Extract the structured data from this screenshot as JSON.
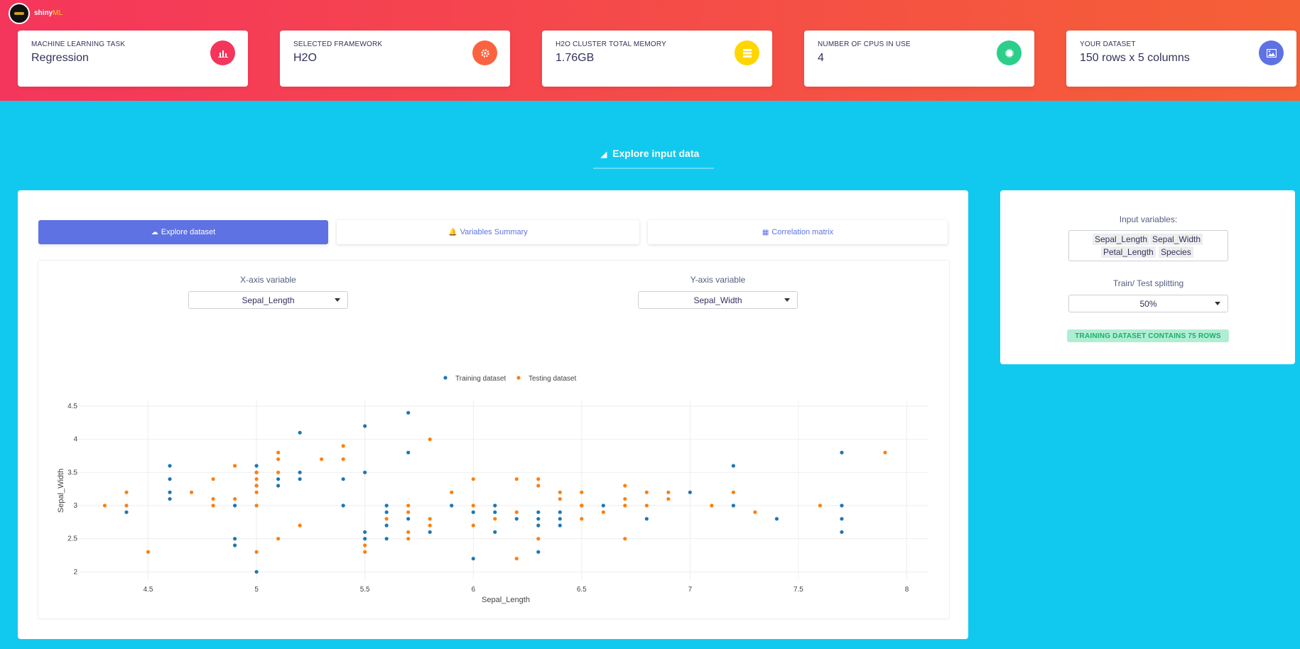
{
  "brand": {
    "name": "shiny",
    "suffix": "ML"
  },
  "stats": [
    {
      "label": "MACHINE LEARNING TASK",
      "value": "Regression",
      "icon": "bar-chart-icon",
      "color": "#f5365c"
    },
    {
      "label": "SELECTED FRAMEWORK",
      "value": "H2O",
      "icon": "cog-icon",
      "color": "#fb6340"
    },
    {
      "label": "H2O CLUSTER TOTAL MEMORY",
      "value": "1.76GB",
      "icon": "server-icon",
      "color": "#ffd600"
    },
    {
      "label": "NUMBER OF CPUS IN USE",
      "value": "4",
      "icon": "cpu-icon",
      "color": "#2dce89"
    },
    {
      "label": "YOUR DATASET",
      "value": "150 rows x 5 columns",
      "icon": "image-icon",
      "color": "#5e72e4"
    }
  ],
  "section": {
    "title": "Explore input data"
  },
  "tabs": [
    {
      "label": "Explore dataset",
      "icon": "cloud-upload-icon"
    },
    {
      "label": "Variables Summary",
      "icon": "bell-icon"
    },
    {
      "label": "Correlation matrix",
      "icon": "calendar-icon"
    }
  ],
  "controls": {
    "x_label": "X-axis variable",
    "x_value": "Sepal_Length",
    "y_label": "Y-axis variable",
    "y_value": "Sepal_Width"
  },
  "side": {
    "input_label": "Input variables:",
    "variables": [
      "Sepal_Length",
      "Sepal_Width",
      "Petal_Length",
      "Species"
    ],
    "split_label": "Train/ Test splitting",
    "split_value": "50%",
    "badge": "TRAINING DATASET CONTAINS 75 ROWS"
  },
  "chart_data": {
    "type": "scatter",
    "xlabel": "Sepal_Length",
    "ylabel": "Sepal_Width",
    "xlim": [
      4.2,
      8.1
    ],
    "ylim": [
      1.95,
      4.5
    ],
    "xticks": [
      4.5,
      5,
      5.5,
      6,
      6.5,
      7,
      7.5,
      8
    ],
    "yticks": [
      2,
      2.5,
      3,
      3.5,
      4,
      4.5
    ],
    "grid": true,
    "legend_position": "top-center",
    "series": [
      {
        "name": "Training dataset",
        "color": "#1f77b4",
        "points": [
          [
            4.4,
            2.9
          ],
          [
            4.6,
            3.6
          ],
          [
            4.6,
            3.4
          ],
          [
            4.6,
            3.2
          ],
          [
            4.6,
            3.1
          ],
          [
            4.9,
            3.0
          ],
          [
            4.9,
            2.5
          ],
          [
            4.9,
            2.4
          ],
          [
            5.0,
            3.6
          ],
          [
            5.0,
            3.5
          ],
          [
            5.0,
            3.3
          ],
          [
            5.0,
            2.0
          ],
          [
            5.1,
            3.4
          ],
          [
            5.1,
            3.3
          ],
          [
            5.2,
            4.1
          ],
          [
            5.2,
            3.5
          ],
          [
            5.2,
            3.4
          ],
          [
            5.4,
            3.4
          ],
          [
            5.4,
            3.0
          ],
          [
            5.5,
            4.2
          ],
          [
            5.5,
            3.5
          ],
          [
            5.5,
            2.6
          ],
          [
            5.5,
            2.5
          ],
          [
            5.6,
            3.0
          ],
          [
            5.6,
            2.9
          ],
          [
            5.6,
            2.7
          ],
          [
            5.6,
            2.5
          ],
          [
            5.7,
            4.4
          ],
          [
            5.7,
            3.8
          ],
          [
            5.7,
            2.8
          ],
          [
            5.8,
            2.6
          ],
          [
            5.9,
            3.0
          ],
          [
            6.0,
            2.9
          ],
          [
            6.0,
            2.2
          ],
          [
            6.1,
            3.0
          ],
          [
            6.1,
            2.9
          ],
          [
            6.1,
            2.6
          ],
          [
            6.2,
            2.8
          ],
          [
            6.3,
            2.9
          ],
          [
            6.3,
            2.8
          ],
          [
            6.3,
            2.7
          ],
          [
            6.3,
            2.3
          ],
          [
            6.4,
            2.9
          ],
          [
            6.4,
            2.8
          ],
          [
            6.4,
            2.7
          ],
          [
            6.5,
            3.0
          ],
          [
            6.6,
            3.0
          ],
          [
            6.8,
            2.8
          ],
          [
            7.0,
            3.2
          ],
          [
            7.2,
            3.6
          ],
          [
            7.2,
            3.0
          ],
          [
            7.4,
            2.8
          ],
          [
            7.7,
            3.8
          ],
          [
            7.7,
            3.0
          ],
          [
            7.7,
            2.8
          ],
          [
            7.7,
            2.6
          ]
        ]
      },
      {
        "name": "Testing dataset",
        "color": "#ff7f0e",
        "points": [
          [
            4.3,
            3.0
          ],
          [
            4.4,
            3.2
          ],
          [
            4.4,
            3.0
          ],
          [
            4.5,
            2.3
          ],
          [
            4.7,
            3.2
          ],
          [
            4.8,
            3.4
          ],
          [
            4.8,
            3.1
          ],
          [
            4.8,
            3.0
          ],
          [
            4.9,
            3.6
          ],
          [
            4.9,
            3.1
          ],
          [
            5.0,
            3.5
          ],
          [
            5.0,
            3.4
          ],
          [
            5.0,
            3.3
          ],
          [
            5.0,
            3.2
          ],
          [
            5.0,
            3.0
          ],
          [
            5.0,
            2.3
          ],
          [
            5.1,
            3.8
          ],
          [
            5.1,
            3.7
          ],
          [
            5.1,
            3.5
          ],
          [
            5.1,
            2.5
          ],
          [
            5.2,
            2.7
          ],
          [
            5.3,
            3.7
          ],
          [
            5.4,
            3.9
          ],
          [
            5.4,
            3.7
          ],
          [
            5.5,
            2.4
          ],
          [
            5.5,
            2.3
          ],
          [
            5.6,
            2.8
          ],
          [
            5.7,
            3.0
          ],
          [
            5.7,
            2.9
          ],
          [
            5.7,
            2.6
          ],
          [
            5.7,
            2.5
          ],
          [
            5.8,
            4.0
          ],
          [
            5.8,
            2.8
          ],
          [
            5.8,
            2.7
          ],
          [
            5.9,
            3.2
          ],
          [
            6.0,
            3.4
          ],
          [
            6.0,
            3.0
          ],
          [
            6.0,
            2.7
          ],
          [
            6.1,
            2.8
          ],
          [
            6.2,
            3.4
          ],
          [
            6.2,
            2.9
          ],
          [
            6.2,
            2.2
          ],
          [
            6.3,
            3.4
          ],
          [
            6.3,
            3.3
          ],
          [
            6.3,
            2.5
          ],
          [
            6.4,
            3.2
          ],
          [
            6.4,
            3.1
          ],
          [
            6.5,
            3.2
          ],
          [
            6.5,
            3.0
          ],
          [
            6.5,
            2.8
          ],
          [
            6.6,
            2.9
          ],
          [
            6.7,
            3.3
          ],
          [
            6.7,
            3.1
          ],
          [
            6.7,
            3.0
          ],
          [
            6.7,
            2.5
          ],
          [
            6.8,
            3.2
          ],
          [
            6.8,
            3.0
          ],
          [
            6.9,
            3.2
          ],
          [
            6.9,
            3.1
          ],
          [
            7.1,
            3.0
          ],
          [
            7.2,
            3.2
          ],
          [
            7.3,
            2.9
          ],
          [
            7.6,
            3.0
          ],
          [
            7.9,
            3.8
          ]
        ]
      }
    ]
  }
}
